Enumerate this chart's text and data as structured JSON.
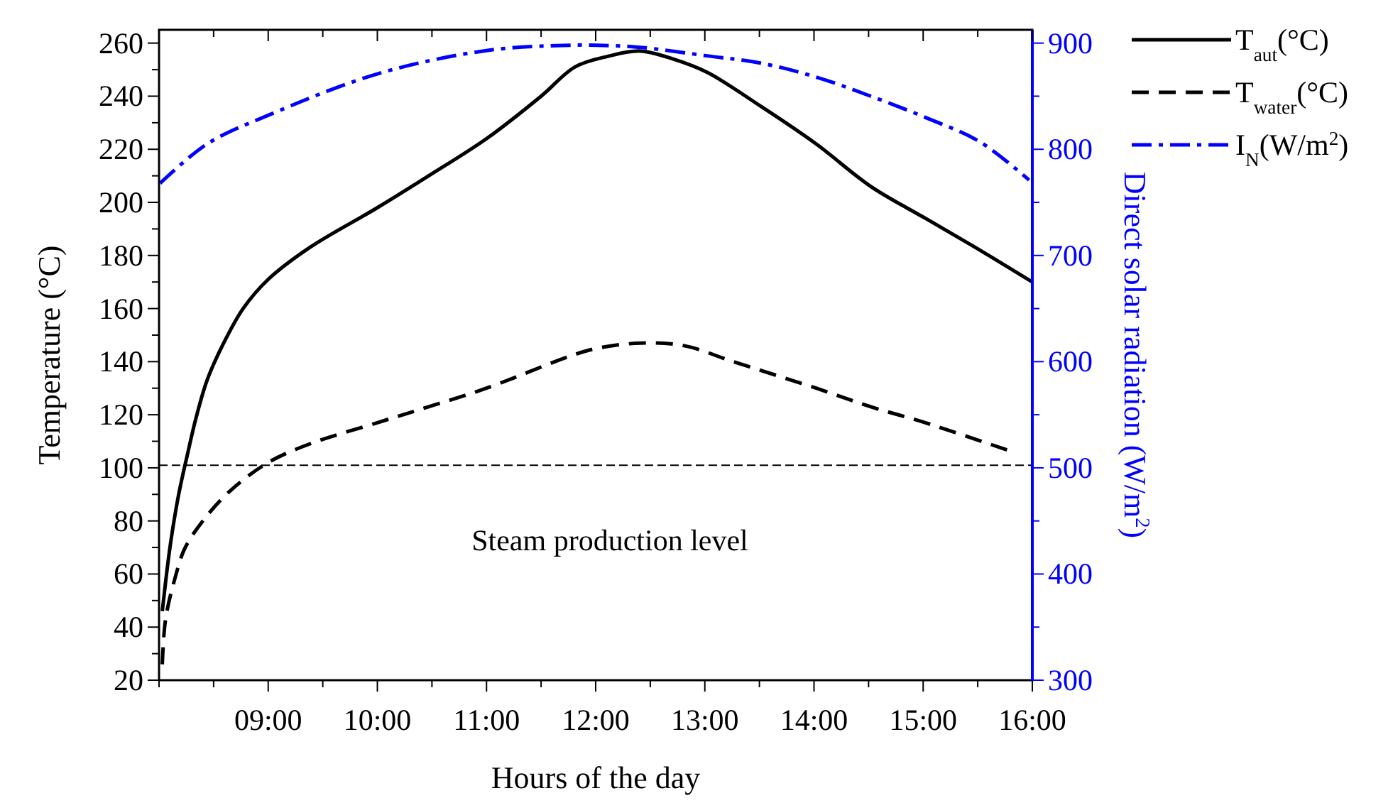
{
  "chart_data": {
    "type": "line",
    "xlabel": "Hours of the day",
    "ylabel": "Temperature (°C)",
    "y2label": "Direct solar radiation (W/m$^{2}$)",
    "xlim": [
      8,
      16
    ],
    "xticks": [
      {
        "value": 8,
        "label": null
      },
      {
        "value": 8.5,
        "label": null
      },
      {
        "value": 9,
        "label": "09:00"
      },
      {
        "value": 9.5,
        "label": null
      },
      {
        "value": 10,
        "label": "10:00"
      },
      {
        "value": 10.5,
        "label": null
      },
      {
        "value": 11,
        "label": "11:00"
      },
      {
        "value": 11.5,
        "label": null
      },
      {
        "value": 12,
        "label": "12:00"
      },
      {
        "value": 12.5,
        "label": null
      },
      {
        "value": 13,
        "label": "13:00"
      },
      {
        "value": 13.5,
        "label": null
      },
      {
        "value": 14,
        "label": "14:00"
      },
      {
        "value": 14.5,
        "label": null
      },
      {
        "value": 15,
        "label": "15:00"
      },
      {
        "value": 15.5,
        "label": null
      },
      {
        "value": 16,
        "label": "16:00"
      }
    ],
    "ylim": [
      20,
      265
    ],
    "yticks": [
      20,
      {
        "value": 30,
        "label": null
      },
      40,
      {
        "value": 50,
        "label": null
      },
      60,
      {
        "value": 70,
        "label": null
      },
      80,
      {
        "value": 90,
        "label": null
      },
      100,
      {
        "value": 110,
        "label": null
      },
      120,
      {
        "value": 130,
        "label": null
      },
      140,
      {
        "value": 150,
        "label": null
      },
      160,
      {
        "value": 170,
        "label": null
      },
      180,
      {
        "value": 190,
        "label": null
      },
      200,
      {
        "value": 210,
        "label": null
      },
      220,
      {
        "value": 230,
        "label": null
      },
      240,
      {
        "value": 250,
        "label": null
      },
      260
    ],
    "y2lim": [
      300,
      912.5
    ],
    "y2ticks": [
      300,
      {
        "value": 350,
        "label": null
      },
      400,
      {
        "value": 450,
        "label": null
      },
      500,
      {
        "value": 550,
        "label": null
      },
      600,
      {
        "value": 650,
        "label": null
      },
      700,
      {
        "value": 750,
        "label": null
      },
      800,
      {
        "value": 850,
        "label": null
      },
      900
    ],
    "legend": "top right",
    "grid": false,
    "marker": "none",
    "ref_lines": [
      {
        "axis": "y",
        "value": 101,
        "label": "Steam production level",
        "color": "#000000",
        "line_style": "dashed"
      }
    ],
    "series": [
      {
        "name": "T$_{aut}$(°C)",
        "color": "#000000",
        "line_style": "solid",
        "x": [
          8.03,
          8.1,
          8.18,
          8.26,
          8.34,
          8.44,
          8.58,
          8.77,
          9,
          9.38,
          10,
          10.47,
          11,
          11.5,
          11.81,
          12.11,
          12.41,
          12.71,
          13.02,
          13.52,
          14.02,
          14.52,
          15.02,
          15.52,
          16
        ],
        "values": [
          46,
          70,
          90,
          105,
          119,
          133,
          146,
          160,
          171,
          183,
          198,
          210,
          224,
          240,
          251,
          255,
          257,
          254,
          249,
          236,
          222,
          206,
          194,
          182,
          170
        ]
      },
      {
        "name": "T$_{water}$(°C)",
        "color": "#000000",
        "line_style": "dashed",
        "x": [
          8.03,
          8.06,
          8.15,
          8.24,
          8.44,
          8.67,
          9,
          9.38,
          10,
          10.47,
          11,
          11.76,
          12.01,
          12.41,
          12.81,
          13.26,
          14.02,
          14.52,
          15.02,
          15.82
        ],
        "values": [
          26,
          43,
          59,
          70,
          82,
          92,
          102,
          109,
          117,
          123,
          130,
          142,
          145,
          147,
          146,
          140,
          130,
          123,
          117,
          106
        ]
      },
      {
        "name": "I$_{N}$(W/m$^{2}$)",
        "color": "#0000ff",
        "line_style": "dashdot",
        "axis": "y2",
        "x": [
          8.01,
          8.44,
          9,
          10,
          11,
          11.76,
          12.01,
          12.41,
          13.02,
          13.52,
          14.02,
          14.52,
          15.02,
          15.52,
          15.97
        ],
        "values": [
          768,
          805,
          832,
          871,
          893,
          898,
          898,
          896,
          888,
          881,
          868,
          850,
          830,
          807,
          771
        ]
      }
    ]
  }
}
